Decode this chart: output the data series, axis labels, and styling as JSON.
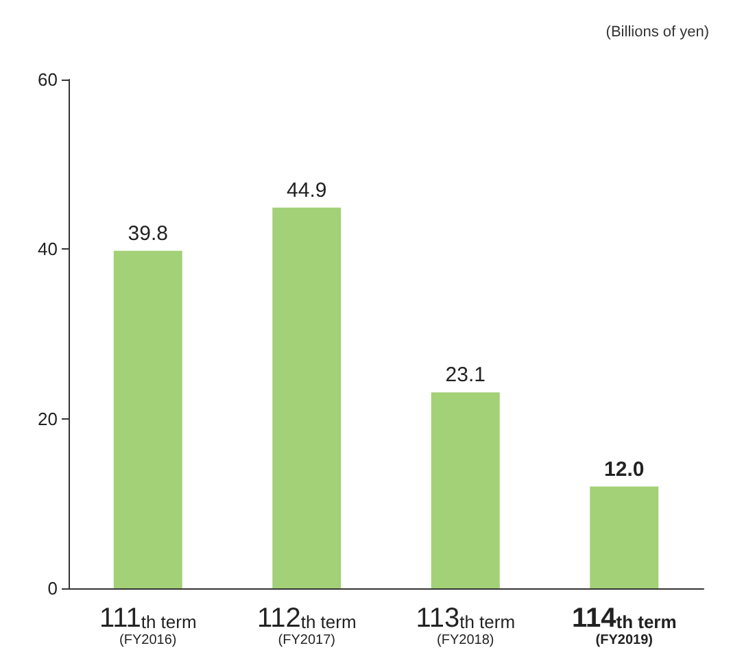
{
  "chart_data": {
    "type": "bar",
    "annotations": [
      "(Billions of yen)"
    ],
    "categories": [
      "111th term\n(FY2016)",
      "112th term\n(FY2017)",
      "113th term\n(FY2018)",
      "114th term\n(FY2019)"
    ],
    "values": [
      39.8,
      44.9,
      23.1,
      12.0
    ],
    "value_labels": [
      "39.8",
      "44.9",
      "23.1",
      "12.0"
    ],
    "color": "#a3d177",
    "ylim": [
      0,
      60
    ],
    "yticks": [
      0,
      20,
      40,
      60
    ],
    "grid": false
  }
}
